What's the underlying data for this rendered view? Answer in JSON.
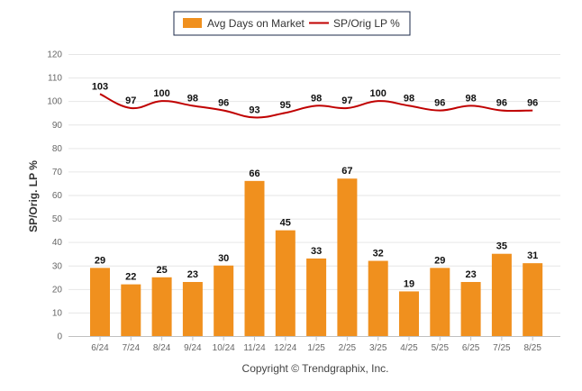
{
  "chart_data": {
    "type": "bar",
    "categories": [
      "6/24",
      "7/24",
      "8/24",
      "9/24",
      "10/24",
      "11/24",
      "12/24",
      "1/25",
      "2/25",
      "3/25",
      "4/25",
      "5/25",
      "6/25",
      "7/25",
      "8/25"
    ],
    "series": [
      {
        "name": "Avg Days on Market",
        "type": "bar",
        "color": "#f0901e",
        "values": [
          29,
          22,
          25,
          23,
          30,
          66,
          45,
          33,
          67,
          32,
          19,
          29,
          23,
          35,
          31
        ]
      },
      {
        "name": "SP/Orig LP %",
        "type": "line",
        "color": "#c00000",
        "values": [
          103,
          97,
          100,
          98,
          96,
          93,
          95,
          98,
          97,
          100,
          98,
          96,
          98,
          96,
          96
        ]
      }
    ],
    "ylabel": "SP/Orig. LP %",
    "ylim": [
      0,
      120
    ],
    "yticks": [
      0,
      10,
      20,
      30,
      40,
      50,
      60,
      70,
      80,
      90,
      100,
      110,
      120
    ],
    "grid": true,
    "legend_position": "top-center"
  },
  "footer": {
    "copyright": "Copyright © Trendgraphix, Inc."
  }
}
